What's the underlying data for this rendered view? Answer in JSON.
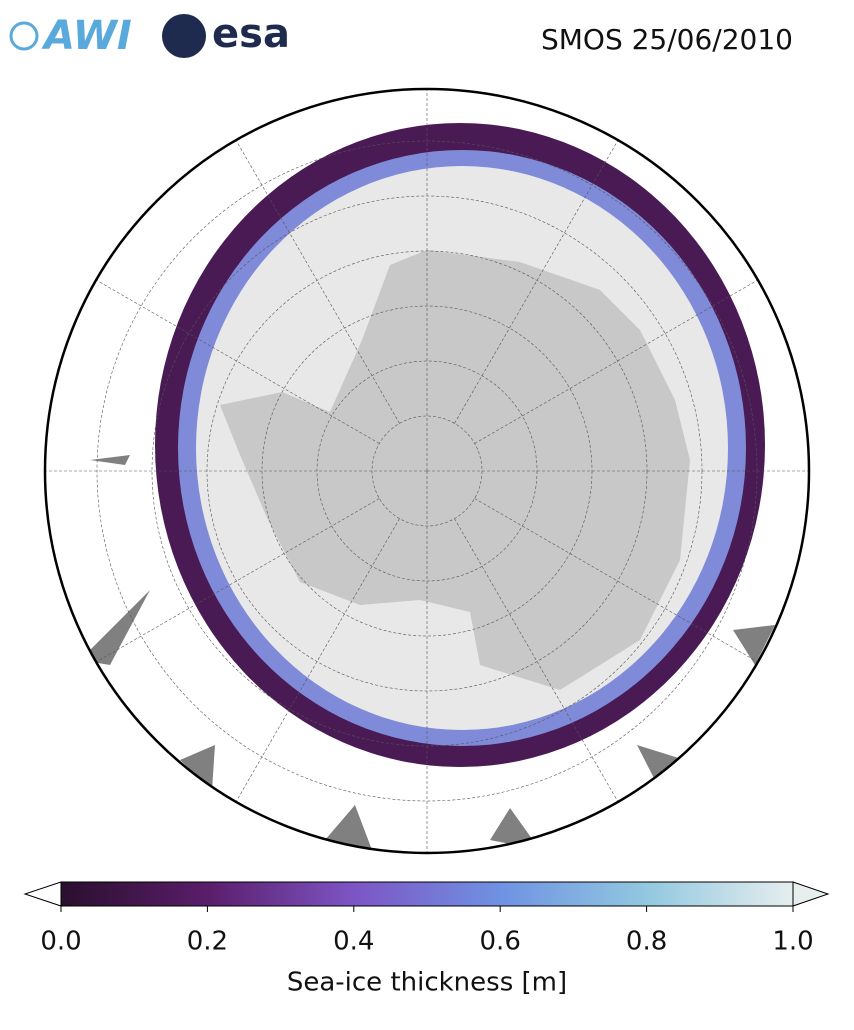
{
  "header": {
    "logos": [
      "AWI",
      "esa"
    ],
    "title": "SMOS 25/06/2010"
  },
  "colorbar": {
    "label": "Sea-ice thickness [m]",
    "lim": [
      0,
      1
    ],
    "ticks": [
      {
        "value": 0,
        "label": "0.0"
      },
      0.2,
      0.4,
      0.6,
      0.8,
      {
        "value": 1,
        "label": "1.0"
      }
    ],
    "colors": [
      "#2a0f2e",
      "#5a1d6a",
      "#7d55c4",
      "#6f92e2",
      "#92c8e0",
      "#e6eeee"
    ]
  }
}
